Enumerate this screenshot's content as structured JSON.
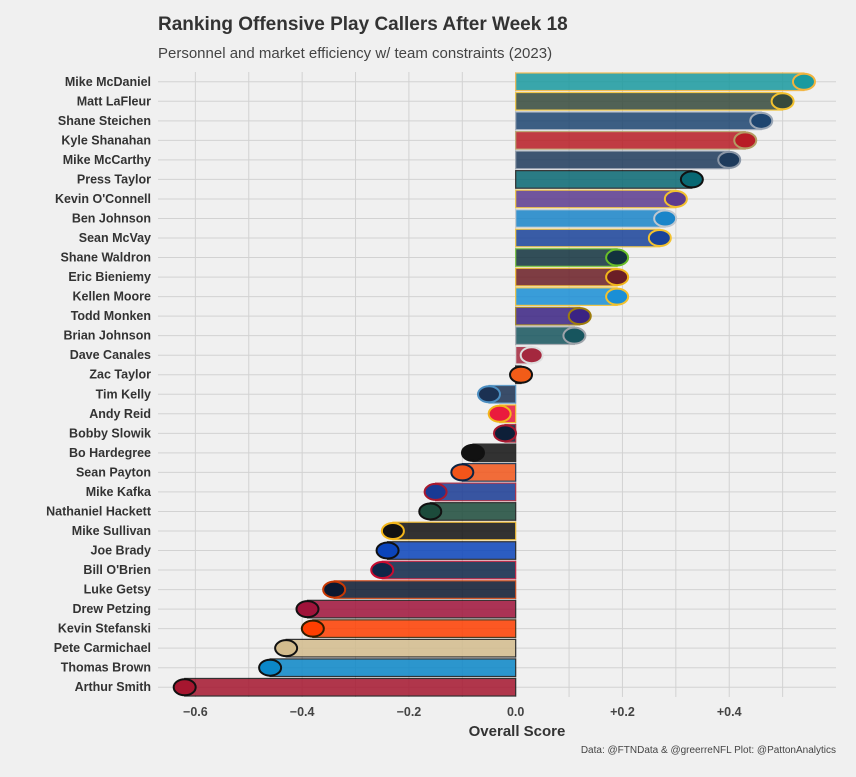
{
  "chart_data": {
    "type": "bar",
    "orientation": "horizontal",
    "title": "Ranking Offensive Play Callers After Week 18",
    "subtitle": "Personnel and market efficiency w/ team constraints (2023)",
    "xlabel": "Overall Score",
    "ylabel": "",
    "caption": "Data: @FTNData & @greerreNFL Plot: @PattonAnalytics",
    "xlim": [
      -0.67,
      0.6
    ],
    "xticks": [
      {
        "value": -0.6,
        "label": "−0.6"
      },
      {
        "value": -0.4,
        "label": "−0.4"
      },
      {
        "value": -0.2,
        "label": "−0.2"
      },
      {
        "value": 0,
        "label": "0.0"
      },
      {
        "value": 0.2,
        "label": "+0.2"
      },
      {
        "value": 0.4,
        "label": "+0.4"
      }
    ],
    "grid": true,
    "categories": [
      "Mike McDaniel",
      "Matt LaFleur",
      "Shane Steichen",
      "Kyle Shanahan",
      "Mike McCarthy",
      "Press Taylor",
      "Kevin O'Connell",
      "Ben Johnson",
      "Sean McVay",
      "Shane Waldron",
      "Eric Bieniemy",
      "Kellen Moore",
      "Todd Monken",
      "Brian Johnson",
      "Dave Canales",
      "Zac Taylor",
      "Tim Kelly",
      "Andy Reid",
      "Bobby Slowik",
      "Bo Hardegree",
      "Sean Payton",
      "Mike Kafka",
      "Nathaniel Hackett",
      "Mike Sullivan",
      "Joe Brady",
      "Bill O'Brien",
      "Luke Getsy",
      "Drew Petzing",
      "Kevin Stefanski",
      "Pete Carmichael",
      "Thomas Brown",
      "Arthur Smith"
    ],
    "values": [
      0.54,
      0.5,
      0.46,
      0.43,
      0.4,
      0.33,
      0.3,
      0.28,
      0.27,
      0.19,
      0.19,
      0.19,
      0.12,
      0.11,
      0.03,
      0.01,
      -0.05,
      -0.03,
      -0.02,
      -0.08,
      -0.1,
      -0.15,
      -0.16,
      -0.23,
      -0.24,
      -0.25,
      -0.34,
      -0.39,
      -0.38,
      -0.43,
      -0.46,
      -0.62
    ],
    "colors": [
      "#1a9a9f",
      "#364a3c",
      "#1d4570",
      "#b81c25",
      "#1e3b5c",
      "#086873",
      "#5c3b8f",
      "#1a85c9",
      "#1a439a",
      "#12323e",
      "#6b1e26",
      "#1a8fd6",
      "#3b2383",
      "#17555e",
      "#a4283e",
      "#f25c18",
      "#1b3152",
      "#ea1a3d",
      "#0d1f38",
      "#111111",
      "#f2551a",
      "#193a94",
      "#1c4b3b",
      "#111111",
      "#0b44bb",
      "#0d2648",
      "#0b1830",
      "#a0133a",
      "#ff3e00",
      "#d3bc8d",
      "#0b87c8",
      "#a6162f"
    ],
    "outlines": [
      "#f2b33d",
      "#f2c12e",
      "#9aa6b5",
      "#b39b63",
      "#8a96a6",
      "#111111",
      "#f2c12e",
      "#bfc7cf",
      "#f2c12e",
      "#69be28",
      "#f2b61a",
      "#f2c12e",
      "#9e7c0c",
      "#9ea3aa",
      "#dddddd",
      "#111111",
      "#4b8ec1",
      "#f2b61a",
      "#a71930",
      "#111111",
      "#0a2343",
      "#a71930",
      "#111111",
      "#f2b61a",
      "#111111",
      "#c60c30",
      "#c83803",
      "#111111",
      "#311d00",
      "#111111",
      "#111111",
      "#111111"
    ]
  }
}
